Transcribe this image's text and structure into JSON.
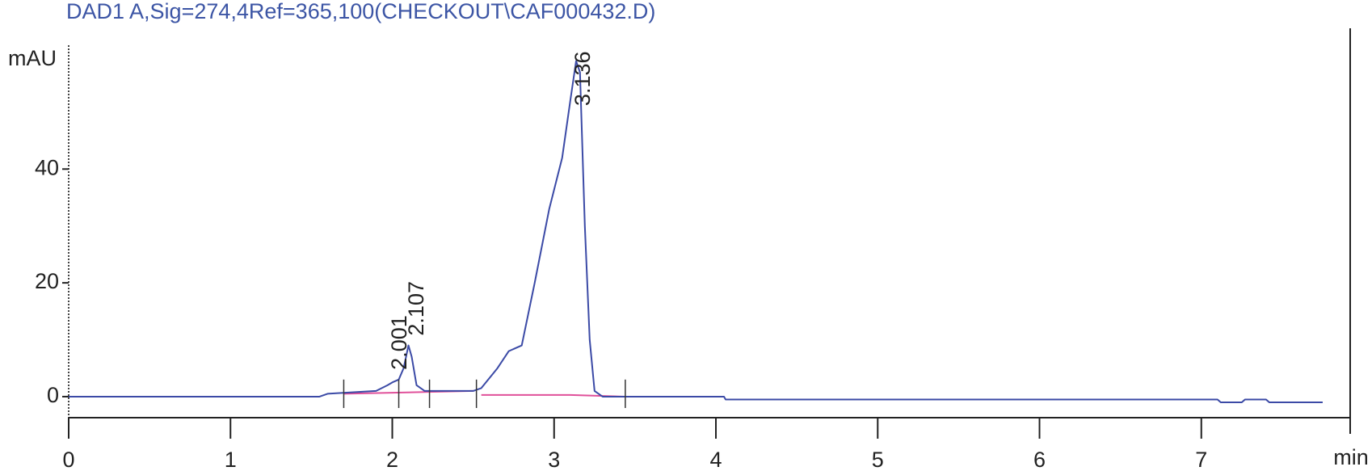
{
  "chart_data": {
    "type": "line",
    "title": "DAD1 A,Sig=274,4Ref=365,100(CHECKOUT\\CAF000432.D)",
    "ylabel": "mAU",
    "xlabel": "min",
    "xlim": [
      0,
      7.92
    ],
    "ylim": [
      -3.7,
      61.2
    ],
    "xticks": [
      0,
      1,
      2,
      3,
      4,
      5,
      6,
      7
    ],
    "yticks": [
      0,
      20,
      40
    ],
    "x": [
      0,
      1.55,
      1.6,
      1.9,
      1.97,
      2.0,
      2.04,
      2.07,
      2.1,
      2.12,
      2.15,
      2.2,
      2.3,
      2.5,
      2.55,
      2.65,
      2.72,
      2.8,
      2.88,
      2.97,
      3.05,
      3.1,
      3.136,
      3.16,
      3.19,
      3.22,
      3.25,
      3.3,
      4.05,
      4.06,
      7.1,
      7.12,
      7.25,
      7.27,
      7.4,
      7.42,
      7.75
    ],
    "series": [
      {
        "color": "#3b4aa6",
        "values": [
          0,
          0,
          0.5,
          1,
          2,
          2.5,
          3,
          5,
          9,
          7,
          2,
          1,
          1,
          1,
          1.5,
          5,
          8,
          9,
          20,
          33,
          42,
          52,
          59,
          57,
          30,
          10,
          1,
          0,
          0,
          -0.5,
          -0.5,
          -1,
          -1,
          -0.5,
          -0.5,
          -1,
          -1
        ]
      }
    ],
    "baselines": [
      {
        "color": "#e0509a",
        "x": [
          1.7,
          2.5
        ],
        "values": [
          0.5,
          1
        ]
      },
      {
        "color": "#e0509a",
        "x": [
          2.55,
          3.1,
          3.44
        ],
        "values": [
          0.3,
          0.3,
          0
        ]
      }
    ],
    "integration_marks": [
      1.7,
      2.04,
      2.23,
      2.52,
      3.44
    ],
    "peak_labels": [
      2.001,
      2.107,
      3.136
    ]
  }
}
